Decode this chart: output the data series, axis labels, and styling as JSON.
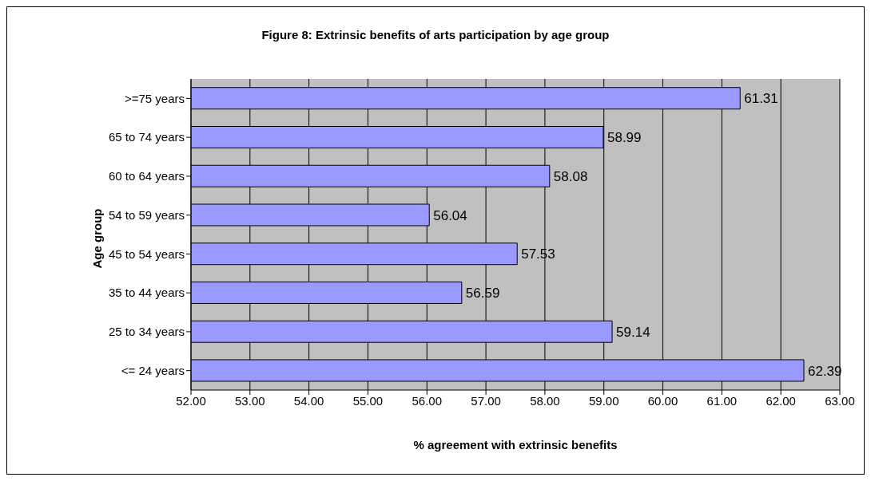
{
  "chart_data": {
    "type": "bar",
    "orientation": "horizontal",
    "title": "Figure 8: Extrinsic benefits of arts participation by age group",
    "xlabel": "% agreement with extrinsic benefits",
    "ylabel": "Age group",
    "categories": [
      ">=75 years",
      "65 to 74 years",
      "60 to 64 years",
      "54 to 59 years",
      "45 to 54 years",
      "35 to 44 years",
      "25 to 34 years",
      "<= 24 years"
    ],
    "values": [
      61.31,
      58.99,
      58.08,
      56.04,
      57.53,
      56.59,
      59.14,
      62.39
    ],
    "color": "#9999ff",
    "data_labels": true,
    "grid": "x",
    "xlim": [
      52,
      63
    ],
    "xticks": [
      {
        "value": 52,
        "label": "52.00"
      },
      {
        "value": 53,
        "label": "53.00"
      },
      {
        "value": 54,
        "label": "54.00"
      },
      {
        "value": 55,
        "label": "55.00"
      },
      {
        "value": 56,
        "label": "56.00"
      },
      {
        "value": 57,
        "label": "57.00"
      },
      {
        "value": 58,
        "label": "58.00"
      },
      {
        "value": 59,
        "label": "59.00"
      },
      {
        "value": 60,
        "label": "60.00"
      },
      {
        "value": 61,
        "label": "61.00"
      },
      {
        "value": 62,
        "label": "62.00"
      },
      {
        "value": 63,
        "label": "63.00"
      }
    ]
  }
}
